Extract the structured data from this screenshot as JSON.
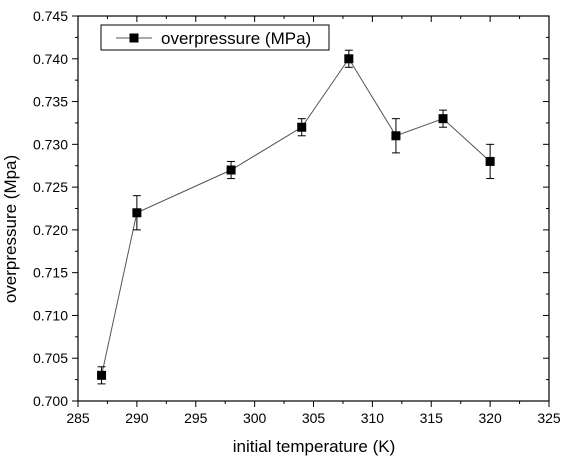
{
  "chart_data": {
    "type": "line",
    "xlabel": "initial temperature (K)",
    "ylabel": "overpressure (Mpa)",
    "xlim": [
      285,
      325
    ],
    "ylim": [
      0.7,
      0.745
    ],
    "x_ticks": [
      "285",
      "290",
      "295",
      "300",
      "305",
      "310",
      "315",
      "320",
      "325"
    ],
    "y_ticks": [
      "0.700",
      "0.705",
      "0.710",
      "0.715",
      "0.720",
      "0.725",
      "0.730",
      "0.735",
      "0.740",
      "0.745"
    ],
    "grid": false,
    "legend_position": "top-left",
    "series": [
      {
        "name": "overpressure (MPa)",
        "marker": "square",
        "color": "#000000",
        "x": [
          287,
          290,
          298,
          304,
          308,
          312,
          316,
          320
        ],
        "y": [
          0.703,
          0.722,
          0.727,
          0.732,
          0.74,
          0.731,
          0.733,
          0.728
        ],
        "error": [
          0.001,
          0.002,
          0.001,
          0.001,
          0.001,
          0.002,
          0.001,
          0.002
        ]
      }
    ]
  }
}
